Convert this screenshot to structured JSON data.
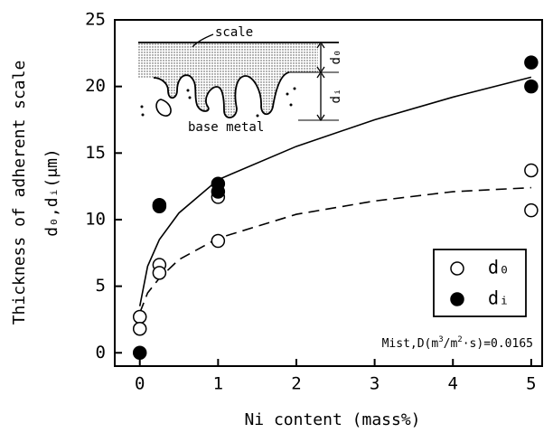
{
  "chart_data": {
    "type": "scatter",
    "xlabel": "Ni content (mass%)",
    "ylabel": [
      "Thickness of adherent scale",
      "d₀,dᵢ(μm)"
    ],
    "xlim": [
      -0.32,
      5.14
    ],
    "ylim": [
      -1,
      25
    ],
    "xticks": [
      0,
      1,
      2,
      3,
      4,
      5
    ],
    "yticks": [
      0,
      5,
      10,
      15,
      20,
      25
    ],
    "series": [
      {
        "name": "d₀",
        "color": "#ffffff",
        "x": [
          0,
          0,
          0.25,
          0.25,
          1,
          1,
          5,
          5
        ],
        "values": [
          2.7,
          1.8,
          6.6,
          6.0,
          11.7,
          8.4,
          13.7,
          10.7
        ]
      },
      {
        "name": "dᵢ",
        "color": "#000000",
        "x": [
          0,
          0.25,
          0.25,
          1,
          1,
          5,
          5
        ],
        "values": [
          0,
          11.1,
          11.0,
          12.7,
          12.1,
          21.8,
          20.0
        ]
      }
    ],
    "fits": [
      {
        "dash": false,
        "x": [
          0,
          0.1,
          0.25,
          0.5,
          1,
          2,
          3,
          4,
          5
        ],
        "values": [
          3.5,
          6.5,
          8.5,
          10.5,
          13.0,
          15.5,
          17.5,
          19.2,
          20.7
        ]
      },
      {
        "dash": true,
        "x": [
          0,
          0.1,
          0.25,
          0.5,
          1,
          2,
          3,
          4,
          5
        ],
        "values": [
          3.0,
          4.5,
          5.6,
          7.0,
          8.6,
          10.4,
          11.4,
          12.1,
          12.4
        ]
      }
    ],
    "annotation": [
      {
        "text": "Mist,D(m"
      },
      {
        "text": "3",
        "sup": true
      },
      {
        "text": "/m"
      },
      {
        "text": "2",
        "sup": true
      },
      {
        "text": "·s)=0.0165"
      }
    ],
    "inset": {
      "scale": "scale",
      "base": "base metal",
      "d0": "d₀",
      "di": "dᵢ"
    }
  }
}
